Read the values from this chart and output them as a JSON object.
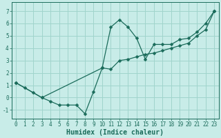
{
  "xlabel": "Humidex (Indice chaleur)",
  "bg_color": "#c8ece8",
  "grid_color": "#a0d4cc",
  "line_color": "#1a6b5a",
  "xlim": [
    -0.5,
    23.5
  ],
  "ylim": [
    -1.7,
    7.7
  ],
  "xticks": [
    0,
    1,
    2,
    3,
    4,
    5,
    6,
    7,
    8,
    9,
    10,
    11,
    12,
    13,
    14,
    15,
    16,
    17,
    18,
    19,
    20,
    21,
    22,
    23
  ],
  "yticks": [
    -1,
    0,
    1,
    2,
    3,
    4,
    5,
    6,
    7
  ],
  "line1_x": [
    0,
    1,
    2,
    3,
    4,
    5,
    6,
    7,
    8,
    9,
    10,
    11,
    12,
    13,
    14,
    15,
    16,
    17,
    18,
    19,
    20,
    21,
    22,
    23
  ],
  "line1_y": [
    1.2,
    0.8,
    0.4,
    0.0,
    -0.3,
    -0.6,
    -0.6,
    -0.6,
    -1.3,
    0.5,
    2.4,
    5.7,
    6.3,
    5.7,
    4.8,
    3.1,
    4.3,
    4.3,
    4.3,
    4.7,
    4.8,
    5.3,
    6.0,
    7.0
  ],
  "line2_x": [
    0,
    3,
    10,
    11,
    12,
    13,
    14,
    15,
    16,
    17,
    18,
    19,
    20,
    21,
    22,
    23
  ],
  "line2_y": [
    1.2,
    0.0,
    2.4,
    2.3,
    3.0,
    3.1,
    3.3,
    3.5,
    3.6,
    3.8,
    4.0,
    4.2,
    4.4,
    5.0,
    5.5,
    7.0
  ],
  "tick_fontsize": 5.5,
  "xlabel_fontsize": 7.0,
  "marker_size": 2.5,
  "linewidth": 0.9
}
